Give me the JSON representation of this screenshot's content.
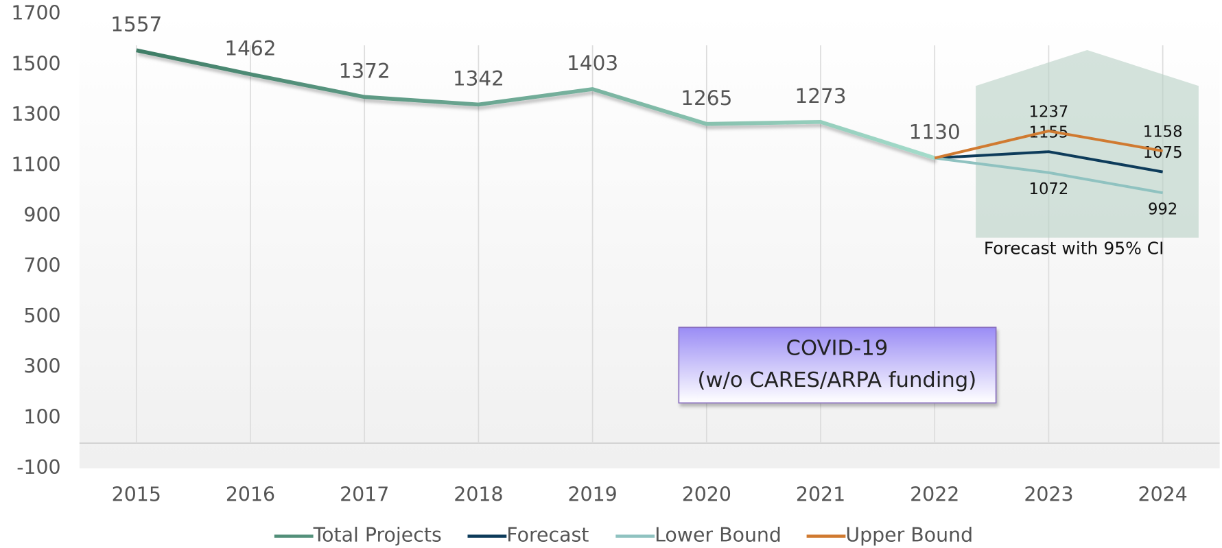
{
  "chart_data": {
    "type": "line",
    "categories": [
      "2015",
      "2016",
      "2017",
      "2018",
      "2019",
      "2020",
      "2021",
      "2022",
      "2023",
      "2024"
    ],
    "series": [
      {
        "name": "Total Projects",
        "color": "#5a9e85",
        "values": [
          1557,
          1462,
          1372,
          1342,
          1403,
          1265,
          1273,
          1130,
          null,
          null
        ]
      },
      {
        "name": "Forecast",
        "color": "#0d3b5a",
        "values": [
          null,
          null,
          null,
          null,
          null,
          null,
          null,
          1130,
          1155,
          1075
        ]
      },
      {
        "name": "Lower Bound",
        "color": "#8fc2c0",
        "values": [
          null,
          null,
          null,
          null,
          null,
          null,
          null,
          1130,
          1072,
          992
        ]
      },
      {
        "name": "Upper Bound",
        "color": "#d07a30",
        "values": [
          null,
          null,
          null,
          null,
          null,
          null,
          null,
          1130,
          1237,
          1158
        ]
      }
    ],
    "ylim": [
      -100,
      1700
    ],
    "yticks": [
      -100,
      100,
      300,
      500,
      700,
      900,
      1100,
      1300,
      1500,
      1700
    ],
    "grid": true,
    "legend": "bottom",
    "annotations": [
      "COVID-19",
      "(w/o CARES/ARPA funding)",
      "Forecast with 95% CI"
    ]
  }
}
